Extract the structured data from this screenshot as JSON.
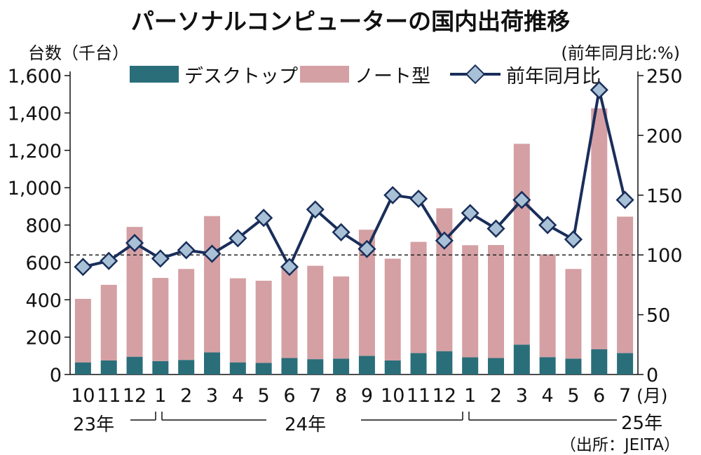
{
  "title": "パーソナルコンピューターの国内出荷推移",
  "left_unit": "台数（千台）",
  "right_unit": "(前年同月比:%)",
  "month_unit": "(月)",
  "source": "（出所：JEITA）",
  "legend": {
    "desktop": "デスクトップ",
    "notebook": "ノート型",
    "yoy": "前年同月比"
  },
  "year_labels": [
    "23年",
    "24年",
    "25年"
  ],
  "colors": {
    "desktop": "#2a6e7a",
    "notebook": "#d4a0a4",
    "line": "#1a2e5a",
    "marker": "#a9c1d6"
  },
  "chart_data": {
    "type": "bar",
    "stacked": true,
    "categories": [
      "10",
      "11",
      "12",
      "1",
      "2",
      "3",
      "4",
      "5",
      "6",
      "7",
      "8",
      "9",
      "10",
      "11",
      "12",
      "1",
      "2",
      "3",
      "4",
      "5",
      "6",
      "7"
    ],
    "series": [
      {
        "name": "デスクトップ",
        "axis": "left",
        "values": [
          65,
          75,
          95,
          72,
          78,
          118,
          65,
          62,
          88,
          82,
          85,
          100,
          75,
          115,
          125,
          92,
          88,
          160,
          93,
          85,
          135,
          115
        ]
      },
      {
        "name": "ノート型",
        "axis": "left",
        "values": [
          340,
          405,
          695,
          445,
          487,
          730,
          450,
          440,
          495,
          500,
          440,
          675,
          545,
          595,
          765,
          600,
          605,
          1075,
          550,
          480,
          1290,
          730
        ]
      },
      {
        "name": "前年同月比",
        "type": "line",
        "axis": "right",
        "values": [
          90,
          95,
          110,
          97,
          104,
          101,
          114,
          131,
          90,
          138,
          119,
          105,
          150,
          147,
          112,
          135,
          122,
          146,
          125,
          113,
          238,
          146
        ]
      }
    ],
    "ylim_left": [
      0,
      1600
    ],
    "yticks_left": [
      "0",
      "200",
      "400",
      "600",
      "800",
      "1,000",
      "1,200",
      "1,400",
      "1,600"
    ],
    "ylim_right": [
      0,
      250
    ],
    "yticks_right": [
      "0",
      "50",
      "100",
      "150",
      "200",
      "250"
    ],
    "reference_line": 100,
    "legend_position": "top"
  }
}
